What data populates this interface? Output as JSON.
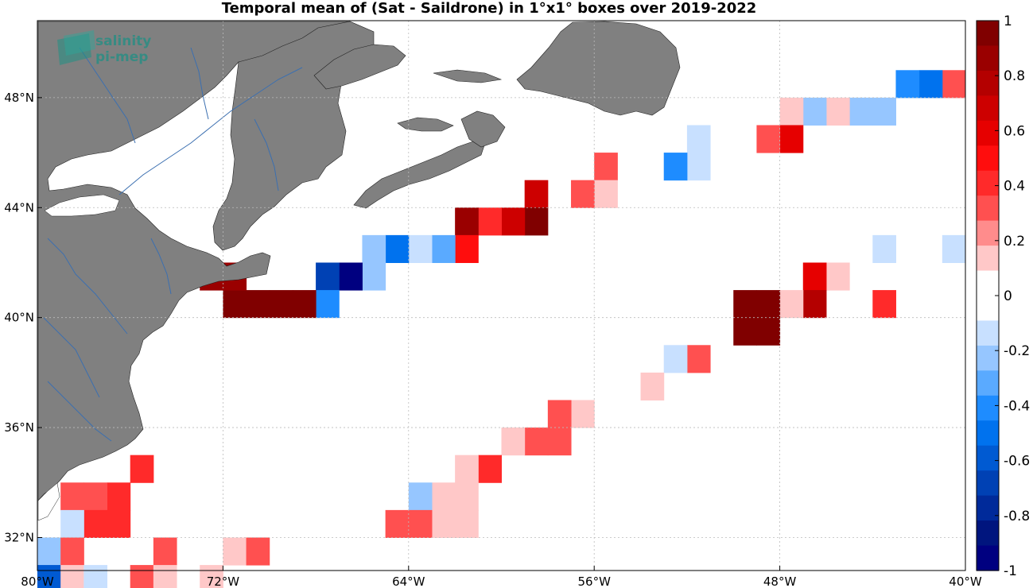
{
  "title": "Temporal mean of (Sat - Saildrone) in 1°x1° boxes over 2019-2022",
  "logo": {
    "line1": "salinity",
    "line2": "pi-mep",
    "color": "#1f8f84"
  },
  "map": {
    "lon_range": [
      -80,
      -40
    ],
    "lat_range": [
      30.8,
      50.8
    ],
    "land_color": "#808080",
    "river_color": "#3b6fb0",
    "x_ticks": [
      {
        "lon": -80,
        "label": "80°W"
      },
      {
        "lon": -72,
        "label": "72°W"
      },
      {
        "lon": -64,
        "label": "64°W"
      },
      {
        "lon": -56,
        "label": "56°W"
      },
      {
        "lon": -48,
        "label": "48°W"
      },
      {
        "lon": -40,
        "label": "40°W"
      }
    ],
    "y_ticks": [
      {
        "lat": 32,
        "label": "32°N"
      },
      {
        "lat": 36,
        "label": "36°N"
      },
      {
        "lat": 40,
        "label": "40°N"
      },
      {
        "lat": 44,
        "label": "44°N"
      },
      {
        "lat": 48,
        "label": "48°N"
      }
    ]
  },
  "colorbar": {
    "range": [
      -1,
      1
    ],
    "tick_labels": [
      "1",
      "0.8",
      "0.6",
      "0.4",
      "0.2",
      "0",
      "-0.2",
      "-0.4",
      "-0.6",
      "-0.8",
      "-1"
    ],
    "colors_top_to_bottom": [
      "#800000",
      "#9a0000",
      "#b40000",
      "#cd0000",
      "#e60000",
      "#ff0d0d",
      "#ff2a2a",
      "#ff5050",
      "#ff8c8c",
      "#ffc8c8",
      "#ffffff",
      "#ffffff",
      "#c8e0ff",
      "#96c6ff",
      "#5aaaff",
      "#1e8cff",
      "#0072ee",
      "#005ad2",
      "#0041b4",
      "#002a9a",
      "#00157e",
      "#000080"
    ]
  },
  "chart_data": {
    "type": "heatmap",
    "title": "Temporal mean of (Sat - Saildrone) in 1°x1° boxes over 2019-2022",
    "colorbar_range": [
      -1,
      1
    ],
    "cells": [
      {
        "lon": -40.5,
        "lat": 48.5,
        "value": 0.3
      },
      {
        "lon": -41.5,
        "lat": 48.5,
        "value": -0.5
      },
      {
        "lon": -42.5,
        "lat": 48.5,
        "value": -0.4
      },
      {
        "lon": -43.5,
        "lat": 47.5,
        "value": -0.2
      },
      {
        "lon": -44.5,
        "lat": 47.5,
        "value": -0.2
      },
      {
        "lon": -45.5,
        "lat": 47.5,
        "value": 0.15
      },
      {
        "lon": -46.5,
        "lat": 47.5,
        "value": -0.25
      },
      {
        "lon": -47.5,
        "lat": 47.5,
        "value": 0.15
      },
      {
        "lon": -47.5,
        "lat": 46.5,
        "value": 0.55
      },
      {
        "lon": -48.5,
        "lat": 46.5,
        "value": 0.3
      },
      {
        "lon": -51.5,
        "lat": 46.5,
        "value": -0.15
      },
      {
        "lon": -51.5,
        "lat": 45.5,
        "value": -0.15
      },
      {
        "lon": -52.5,
        "lat": 45.5,
        "value": -0.4
      },
      {
        "lon": -55.5,
        "lat": 45.5,
        "value": 0.3
      },
      {
        "lon": -55.5,
        "lat": 44.5,
        "value": 0.15
      },
      {
        "lon": -56.5,
        "lat": 44.5,
        "value": 0.3
      },
      {
        "lon": -58.5,
        "lat": 44.5,
        "value": 0.65
      },
      {
        "lon": -58.5,
        "lat": 43.5,
        "value": 0.95
      },
      {
        "lon": -59.5,
        "lat": 43.5,
        "value": 0.7
      },
      {
        "lon": -60.5,
        "lat": 43.5,
        "value": 0.4
      },
      {
        "lon": -61.5,
        "lat": 43.5,
        "value": 0.85
      },
      {
        "lon": -61.5,
        "lat": 42.5,
        "value": 0.5
      },
      {
        "lon": -62.5,
        "lat": 42.5,
        "value": -0.3
      },
      {
        "lon": -63.5,
        "lat": 42.5,
        "value": -0.15
      },
      {
        "lon": -64.5,
        "lat": 42.5,
        "value": -0.5
      },
      {
        "lon": -65.5,
        "lat": 42.5,
        "value": -0.25
      },
      {
        "lon": -65.5,
        "lat": 41.5,
        "value": -0.25
      },
      {
        "lon": -66.5,
        "lat": 41.5,
        "value": -0.95
      },
      {
        "lon": -67.5,
        "lat": 41.5,
        "value": -0.7
      },
      {
        "lon": -67.5,
        "lat": 40.5,
        "value": -0.45
      },
      {
        "lon": -68.5,
        "lat": 40.5,
        "value": 1.0
      },
      {
        "lon": -69.5,
        "lat": 40.5,
        "value": 1.0
      },
      {
        "lon": -70.5,
        "lat": 40.5,
        "value": 1.0
      },
      {
        "lon": -71.5,
        "lat": 40.5,
        "value": 1.0
      },
      {
        "lon": -71.5,
        "lat": 41.5,
        "value": 0.9
      },
      {
        "lon": -72.5,
        "lat": 41.5,
        "value": 0.9
      },
      {
        "lon": -40.5,
        "lat": 42.5,
        "value": -0.15
      },
      {
        "lon": -43.5,
        "lat": 42.5,
        "value": -0.15
      },
      {
        "lon": -45.5,
        "lat": 41.5,
        "value": 0.15
      },
      {
        "lon": -46.5,
        "lat": 41.5,
        "value": 0.55
      },
      {
        "lon": -43.5,
        "lat": 40.5,
        "value": 0.45
      },
      {
        "lon": -46.5,
        "lat": 40.5,
        "value": 0.75
      },
      {
        "lon": -47.5,
        "lat": 40.5,
        "value": 0.15
      },
      {
        "lon": -48.5,
        "lat": 40.5,
        "value": 1.0
      },
      {
        "lon": -49.5,
        "lat": 40.5,
        "value": 1.0
      },
      {
        "lon": -48.5,
        "lat": 39.5,
        "value": 1.0
      },
      {
        "lon": -49.5,
        "lat": 39.5,
        "value": 1.0
      },
      {
        "lon": -51.5,
        "lat": 38.5,
        "value": 0.3
      },
      {
        "lon": -52.5,
        "lat": 38.5,
        "value": -0.15
      },
      {
        "lon": -53.5,
        "lat": 37.5,
        "value": 0.15
      },
      {
        "lon": -56.5,
        "lat": 36.5,
        "value": 0.15
      },
      {
        "lon": -57.5,
        "lat": 36.5,
        "value": 0.3
      },
      {
        "lon": -57.5,
        "lat": 35.5,
        "value": 0.3
      },
      {
        "lon": -58.5,
        "lat": 35.5,
        "value": 0.3
      },
      {
        "lon": -59.5,
        "lat": 35.5,
        "value": 0.15
      },
      {
        "lon": -60.5,
        "lat": 34.5,
        "value": 0.45
      },
      {
        "lon": -61.5,
        "lat": 34.5,
        "value": 0.15
      },
      {
        "lon": -61.5,
        "lat": 33.5,
        "value": 0.15
      },
      {
        "lon": -62.5,
        "lat": 33.5,
        "value": 0.15
      },
      {
        "lon": -63.5,
        "lat": 33.5,
        "value": -0.25
      },
      {
        "lon": -61.5,
        "lat": 32.5,
        "value": 0.15
      },
      {
        "lon": -62.5,
        "lat": 32.5,
        "value": 0.15
      },
      {
        "lon": -63.5,
        "lat": 32.5,
        "value": 0.3
      },
      {
        "lon": -64.5,
        "lat": 32.5,
        "value": 0.3
      },
      {
        "lon": -75.5,
        "lat": 34.5,
        "value": 0.45
      },
      {
        "lon": -76.5,
        "lat": 33.5,
        "value": 0.45
      },
      {
        "lon": -77.5,
        "lat": 33.5,
        "value": 0.3
      },
      {
        "lon": -78.5,
        "lat": 33.5,
        "value": 0.3
      },
      {
        "lon": -76.5,
        "lat": 32.5,
        "value": 0.45
      },
      {
        "lon": -77.5,
        "lat": 32.5,
        "value": 0.45
      },
      {
        "lon": -78.5,
        "lat": 32.5,
        "value": -0.15
      },
      {
        "lon": -79.5,
        "lat": 31.5,
        "value": -0.25
      },
      {
        "lon": -78.5,
        "lat": 31.5,
        "value": 0.3
      },
      {
        "lon": -74.5,
        "lat": 31.5,
        "value": 0.3
      },
      {
        "lon": -71.5,
        "lat": 31.5,
        "value": 0.15
      },
      {
        "lon": -70.5,
        "lat": 31.5,
        "value": 0.3
      },
      {
        "lon": -79.5,
        "lat": 30.5,
        "value": -0.55
      },
      {
        "lon": -78.5,
        "lat": 30.5,
        "value": 0.15
      },
      {
        "lon": -77.5,
        "lat": 30.5,
        "value": -0.15
      },
      {
        "lon": -75.5,
        "lat": 30.5,
        "value": 0.3
      },
      {
        "lon": -74.5,
        "lat": 30.5,
        "value": 0.15
      },
      {
        "lon": -72.5,
        "lat": 30.5,
        "value": 0.15
      }
    ]
  }
}
